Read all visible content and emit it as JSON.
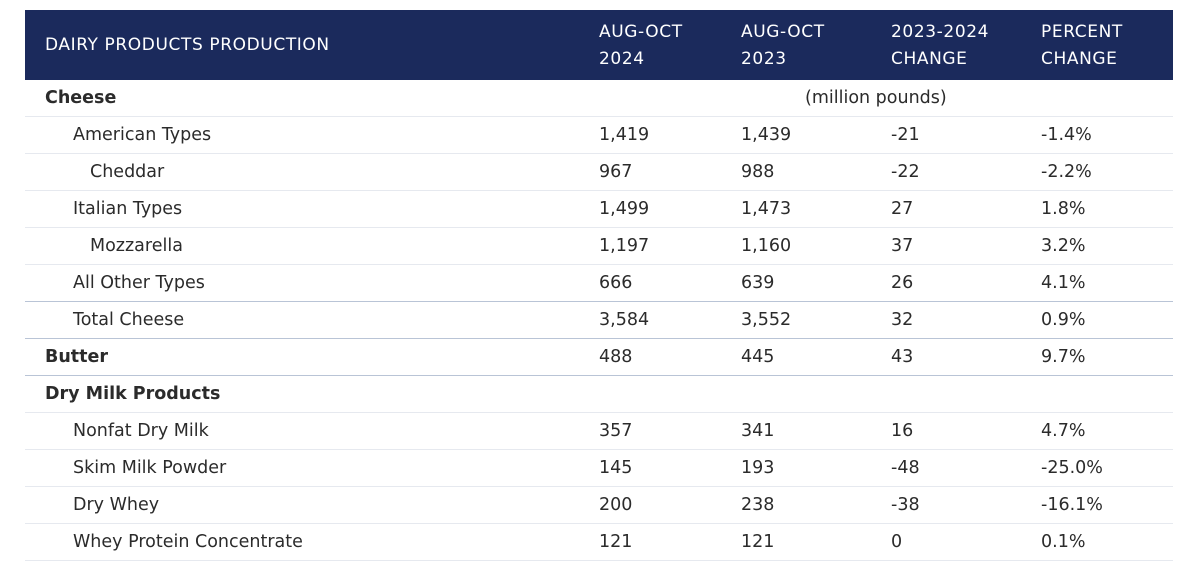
{
  "header": {
    "title": "DAIRY PRODUCTS PRODUCTION",
    "col1": "AUG-OCT\n2024",
    "col2": "AUG-OCT\n2023",
    "col3": "2023-2024\nCHANGE",
    "col4": "PERCENT\nCHANGE"
  },
  "rows": [
    {
      "label": "Cheese",
      "unit": "(million pounds)"
    },
    {
      "label": "American Types",
      "v1": "1,419",
      "v2": "1,439",
      "v3": "-21",
      "v4": "-1.4%"
    },
    {
      "label": "Cheddar",
      "v1": "967",
      "v2": "988",
      "v3": "-22",
      "v4": "-2.2%"
    },
    {
      "label": "Italian Types",
      "v1": "1,499",
      "v2": "1,473",
      "v3": "27",
      "v4": "1.8%"
    },
    {
      "label": "Mozzarella",
      "v1": "1,197",
      "v2": "1,160",
      "v3": "37",
      "v4": "3.2%"
    },
    {
      "label": "All Other Types",
      "v1": "666",
      "v2": "639",
      "v3": "26",
      "v4": "4.1%"
    },
    {
      "label": "Total Cheese",
      "v1": "3,584",
      "v2": "3,552",
      "v3": "32",
      "v4": "0.9%"
    },
    {
      "label": "Butter",
      "v1": "488",
      "v2": "445",
      "v3": "43",
      "v4": "9.7%"
    },
    {
      "label": "Dry Milk Products"
    },
    {
      "label": "Nonfat Dry Milk",
      "v1": "357",
      "v2": "341",
      "v3": "16",
      "v4": "4.7%"
    },
    {
      "label": "Skim Milk Powder",
      "v1": "145",
      "v2": "193",
      "v3": "-48",
      "v4": "-25.0%"
    },
    {
      "label": "Dry Whey",
      "v1": "200",
      "v2": "238",
      "v3": "-38",
      "v4": "-16.1%"
    },
    {
      "label": "Whey Protein Concentrate",
      "v1": "121",
      "v2": "121",
      "v3": "0",
      "v4": "0.1%"
    }
  ]
}
